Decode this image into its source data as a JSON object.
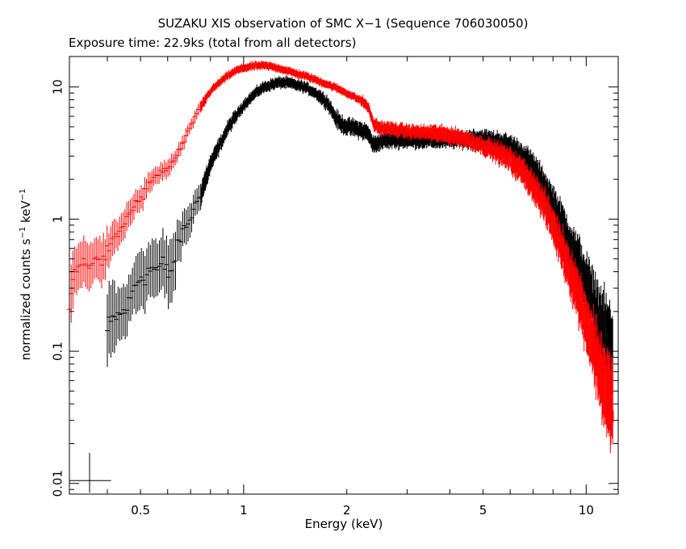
{
  "chart_data": {
    "type": "scatter",
    "title": "SUZAKU XIS observation of SMC X−1 (Sequence 706030050)",
    "subtitle": "Exposure time: 22.9ks (total from all detectors)",
    "xlabel": "Energy (keV)",
    "ylabel_main": "normalized counts s",
    "ylabel_sup1": "−1",
    "ylabel_mid": " keV",
    "ylabel_sup2": "−1",
    "x_scale": "log",
    "y_scale": "log",
    "xlim": [
      0.31,
      12.4
    ],
    "ylim": [
      0.0083,
      17
    ],
    "x_ticks": [
      {
        "value": 0.5,
        "label": "0.5"
      },
      {
        "value": 1,
        "label": "1"
      },
      {
        "value": 2,
        "label": "2"
      },
      {
        "value": 5,
        "label": "5"
      },
      {
        "value": 10,
        "label": "10"
      }
    ],
    "y_ticks": [
      {
        "value": 0.01,
        "label": "0.01"
      },
      {
        "value": 0.1,
        "label": "0.1"
      },
      {
        "value": 1,
        "label": "1"
      },
      {
        "value": 10,
        "label": "10"
      }
    ],
    "series": [
      {
        "color": "#000000",
        "x": [
          0.4,
          0.42,
          0.44,
          0.46,
          0.48,
          0.5,
          0.52,
          0.54,
          0.56,
          0.58,
          0.6,
          0.62,
          0.64,
          0.66,
          0.68,
          0.7,
          0.72,
          0.75,
          0.78,
          0.8,
          0.85,
          0.9,
          0.95,
          1.0,
          1.05,
          1.1,
          1.15,
          1.2,
          1.25,
          1.3,
          1.35,
          1.4,
          1.45,
          1.5,
          1.55,
          1.6,
          1.65,
          1.7,
          1.75,
          1.8,
          1.85,
          1.9,
          2.0,
          2.1,
          2.2,
          2.3,
          2.4,
          2.5,
          2.7,
          3.0,
          3.5,
          4.0,
          4.5,
          5.0,
          5.5,
          6.0,
          6.5,
          7.0,
          7.5,
          8.0,
          8.5,
          9.0,
          9.5,
          10.0,
          10.5,
          11.0,
          11.5,
          12.0
        ],
        "y": [
          0.14,
          0.18,
          0.19,
          0.22,
          0.31,
          0.37,
          0.38,
          0.43,
          0.41,
          0.45,
          0.39,
          0.42,
          0.6,
          0.78,
          0.88,
          1.02,
          1.25,
          1.55,
          2.1,
          2.6,
          3.6,
          4.9,
          6.0,
          7.3,
          8.3,
          9.3,
          10.0,
          10.4,
          10.7,
          10.8,
          10.7,
          10.5,
          10.2,
          10.0,
          9.6,
          9.2,
          8.7,
          8.1,
          7.7,
          6.8,
          5.9,
          5.4,
          5.0,
          4.9,
          4.7,
          4.5,
          3.6,
          3.9,
          4.0,
          4.0,
          4.0,
          4.0,
          4.0,
          4.0,
          3.8,
          3.5,
          3.0,
          2.4,
          1.8,
          1.3,
          0.9,
          0.62,
          0.45,
          0.32,
          0.22,
          0.16,
          0.12,
          0.085
        ],
        "spread": [
          0.25,
          0.18,
          0.18,
          0.16,
          0.2,
          0.2,
          0.18,
          0.2,
          0.18,
          0.2,
          0.22,
          0.2,
          0.14,
          0.12,
          0.12,
          0.1,
          0.09,
          0.08,
          0.07,
          0.06,
          0.05,
          0.05,
          0.04,
          0.04,
          0.04,
          0.04,
          0.04,
          0.04,
          0.04,
          0.04,
          0.04,
          0.04,
          0.04,
          0.04,
          0.04,
          0.04,
          0.05,
          0.05,
          0.05,
          0.05,
          0.06,
          0.06,
          0.06,
          0.06,
          0.06,
          0.06,
          0.06,
          0.06,
          0.06,
          0.06,
          0.06,
          0.06,
          0.07,
          0.07,
          0.08,
          0.09,
          0.1,
          0.11,
          0.12,
          0.14,
          0.16,
          0.18,
          0.2,
          0.22,
          0.25,
          0.28,
          0.32,
          0.36
        ]
      },
      {
        "color": "#ff0000",
        "x": [
          0.31,
          0.32,
          0.33,
          0.34,
          0.35,
          0.36,
          0.37,
          0.38,
          0.39,
          0.4,
          0.42,
          0.44,
          0.46,
          0.48,
          0.5,
          0.52,
          0.54,
          0.56,
          0.58,
          0.6,
          0.62,
          0.64,
          0.66,
          0.68,
          0.7,
          0.72,
          0.75,
          0.78,
          0.8,
          0.85,
          0.9,
          0.95,
          1.0,
          1.05,
          1.1,
          1.15,
          1.2,
          1.25,
          1.3,
          1.4,
          1.5,
          1.6,
          1.7,
          1.8,
          1.9,
          2.0,
          2.1,
          2.2,
          2.3,
          2.4,
          2.5,
          2.7,
          3.0,
          3.5,
          4.0,
          4.5,
          5.0,
          5.5,
          6.0,
          6.5,
          7.0,
          7.5,
          8.0,
          8.5,
          9.0,
          9.5,
          10.0,
          10.5,
          11.0,
          11.5,
          12.0
        ],
        "y": [
          0.2,
          0.42,
          0.47,
          0.44,
          0.46,
          0.48,
          0.52,
          0.44,
          0.53,
          0.56,
          0.7,
          0.85,
          1.05,
          1.3,
          1.4,
          1.7,
          2.0,
          2.1,
          2.35,
          2.4,
          2.65,
          3.1,
          3.6,
          4.2,
          5.1,
          5.8,
          7.0,
          8.4,
          9.3,
          10.8,
          12.2,
          13.3,
          13.9,
          14.3,
          14.5,
          14.5,
          14.3,
          14.0,
          13.6,
          12.8,
          12.2,
          11.5,
          10.8,
          10.2,
          9.6,
          9.0,
          8.4,
          7.9,
          7.2,
          5.2,
          4.9,
          4.8,
          4.6,
          4.5,
          4.3,
          4.0,
          3.6,
          3.2,
          2.8,
          2.3,
          1.8,
          1.3,
          0.9,
          0.6,
          0.4,
          0.26,
          0.17,
          0.11,
          0.07,
          0.048,
          0.034
        ],
        "spread": [
          0.2,
          0.16,
          0.16,
          0.16,
          0.16,
          0.14,
          0.14,
          0.16,
          0.14,
          0.12,
          0.1,
          0.1,
          0.09,
          0.08,
          0.08,
          0.07,
          0.06,
          0.06,
          0.06,
          0.06,
          0.05,
          0.05,
          0.05,
          0.04,
          0.04,
          0.04,
          0.04,
          0.03,
          0.03,
          0.03,
          0.03,
          0.03,
          0.03,
          0.03,
          0.03,
          0.03,
          0.03,
          0.03,
          0.03,
          0.03,
          0.03,
          0.03,
          0.03,
          0.03,
          0.03,
          0.03,
          0.03,
          0.04,
          0.04,
          0.05,
          0.05,
          0.05,
          0.05,
          0.06,
          0.06,
          0.06,
          0.07,
          0.08,
          0.09,
          0.1,
          0.11,
          0.12,
          0.14,
          0.16,
          0.18,
          0.2,
          0.22,
          0.26,
          0.3,
          0.34,
          0.38
        ]
      }
    ],
    "legend_errorbar": {
      "x": 0.355,
      "y": 0.0105,
      "xerr_lo": 0.31,
      "xerr_hi": 0.41,
      "yerr_lo": 0.0085,
      "yerr_hi": 0.017
    }
  }
}
